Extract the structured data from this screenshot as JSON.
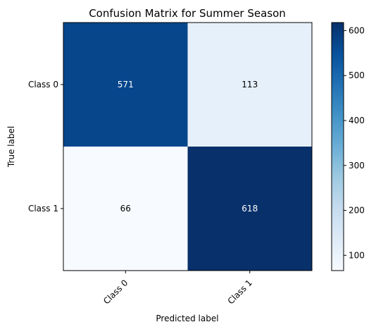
{
  "chart_data": {
    "type": "heatmap",
    "title": "Confusion Matrix for Summer Season",
    "xlabel": "Predicted label",
    "ylabel": "True label",
    "x_categories": [
      "Class 0",
      "Class 1"
    ],
    "y_categories": [
      "Class 0",
      "Class 1"
    ],
    "values": [
      [
        571,
        113
      ],
      [
        66,
        618
      ]
    ],
    "colormap": "Blues",
    "colorbar": {
      "range": [
        66,
        618
      ],
      "ticks": [
        "100",
        "200",
        "300",
        "400",
        "500",
        "600"
      ]
    },
    "grid": false
  }
}
